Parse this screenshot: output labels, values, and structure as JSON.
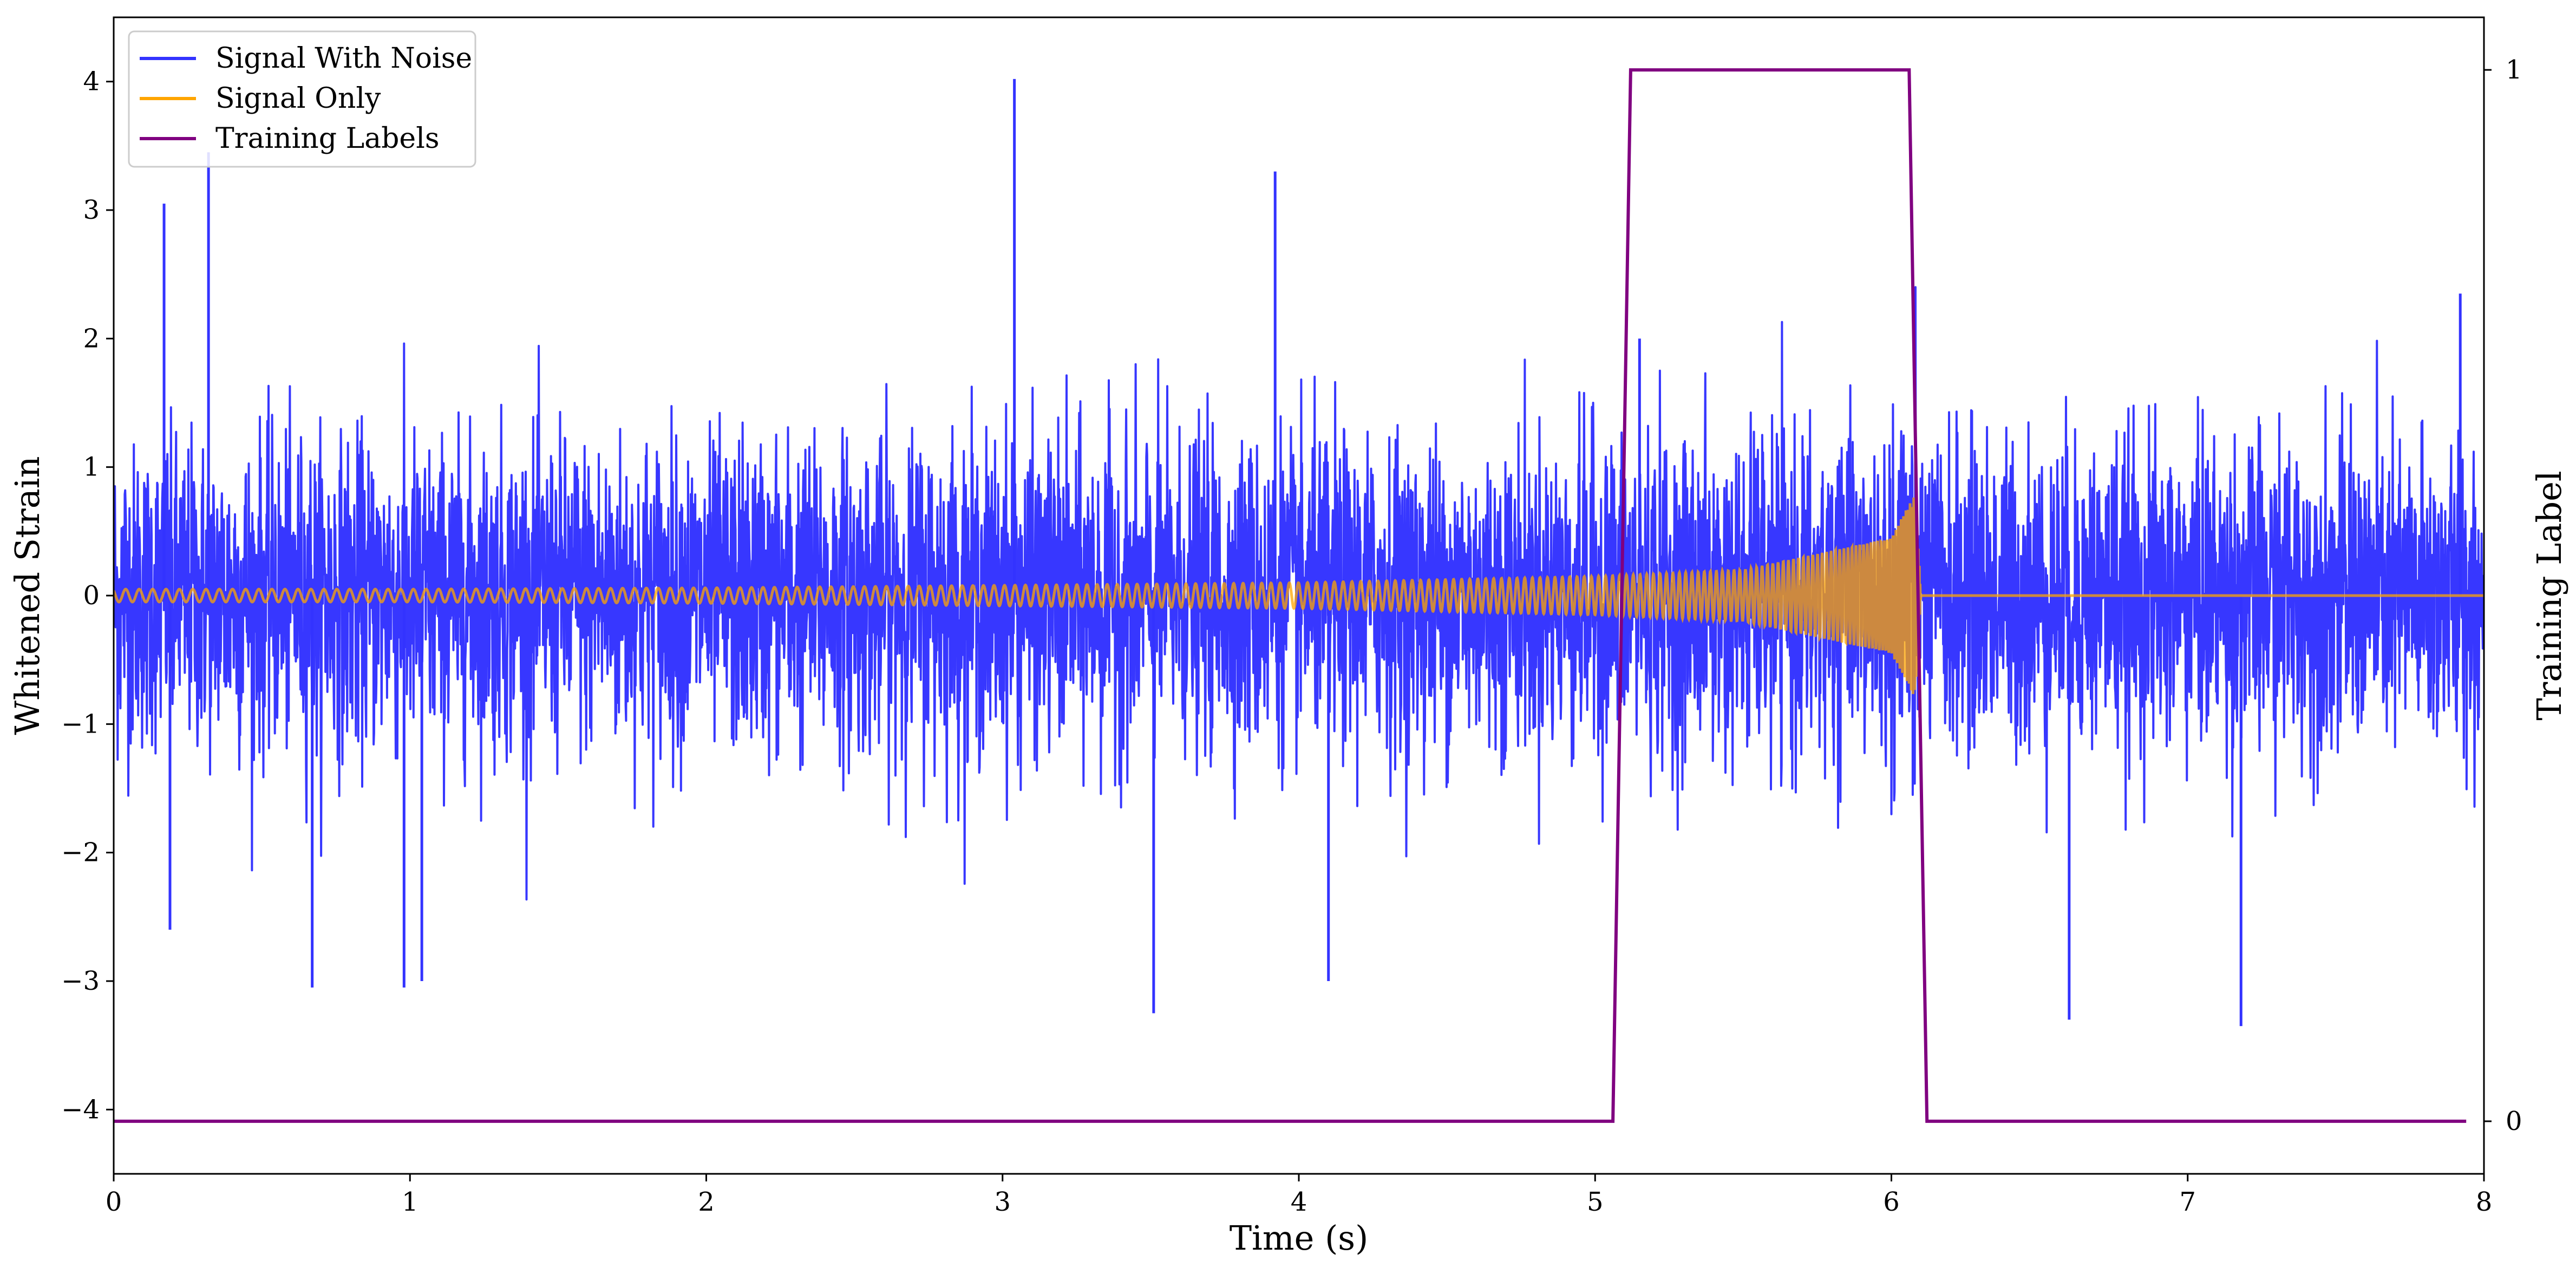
{
  "chart_data": {
    "type": "line",
    "xlabel": "Time (s)",
    "ylabel": "Whitened Strain",
    "y2label": "Training Label",
    "xlim": [
      0,
      8
    ],
    "ylim": [
      -4.5,
      4.5
    ],
    "y2lim": [
      -0.05,
      1.05
    ],
    "x_ticks": [
      0,
      1,
      2,
      3,
      4,
      5,
      6,
      7,
      8
    ],
    "y_ticks": [
      -4,
      -3,
      -2,
      -1,
      0,
      1,
      2,
      3,
      4
    ],
    "y2_ticks": [
      0,
      1
    ],
    "grid": false,
    "legend": {
      "position": "top-left",
      "entries": [
        "Signal With Noise",
        "Signal Only",
        "Training Labels"
      ]
    },
    "series": [
      {
        "name": "Signal With Noise",
        "axis": "left",
        "color": "#3333ff",
        "kind": "noise",
        "x_range": [
          0,
          8
        ],
        "typical_amplitude": 1.5,
        "peaks": [
          [
            0.17,
            3.05
          ],
          [
            0.19,
            -2.6
          ],
          [
            0.32,
            3.45
          ],
          [
            0.67,
            -3.05
          ],
          [
            0.98,
            -3.05
          ],
          [
            1.04,
            -3.0
          ],
          [
            3.04,
            4.02
          ],
          [
            3.51,
            -3.25
          ],
          [
            3.92,
            3.3
          ],
          [
            4.1,
            -3.0
          ],
          [
            5.15,
            2.0
          ],
          [
            6.6,
            -3.3
          ],
          [
            7.18,
            -3.35
          ],
          [
            7.92,
            2.35
          ]
        ]
      },
      {
        "name": "Signal Only",
        "axis": "left",
        "color": "#ffa500",
        "kind": "chirp",
        "x": [
          0,
          1,
          2,
          3,
          4,
          5,
          5.5,
          6,
          6.08,
          6.1,
          8
        ],
        "amplitude": [
          0.05,
          0.05,
          0.06,
          0.08,
          0.1,
          0.15,
          0.2,
          0.45,
          0.8,
          0,
          0
        ]
      },
      {
        "name": "Training Labels",
        "axis": "right",
        "color": "#800080",
        "kind": "step",
        "x": [
          0,
          5.06,
          5.12,
          6.06,
          6.12,
          7.94
        ],
        "y": [
          0,
          0,
          1,
          1,
          0,
          0
        ]
      }
    ]
  }
}
